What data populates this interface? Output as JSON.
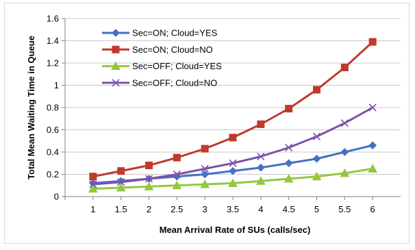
{
  "chart_data": {
    "type": "line",
    "xlabel": "Mean Arrival Rate of SUs (calls/sec)",
    "ylabel": "Total Mean Waiting Time in Queue",
    "x": [
      1,
      1.5,
      2,
      2.5,
      3,
      3.5,
      4,
      4.5,
      5,
      5.5,
      6
    ],
    "x_tick_labels": [
      "1",
      "1.5",
      "2",
      "2.5",
      "3",
      "3.5",
      "4",
      "4.5",
      "5",
      "5.5",
      "6"
    ],
    "ylim": [
      0,
      1.6
    ],
    "y_ticks": [
      0,
      0.2,
      0.4,
      0.6,
      0.8,
      1,
      1.2,
      1.4,
      1.6
    ],
    "y_tick_labels": [
      "0",
      "0.2",
      "0.4",
      "0.6",
      "0.8",
      "1",
      "1.2",
      "1.4",
      "1.6"
    ],
    "grid": "horizontal",
    "legend_position": "top-left",
    "series": [
      {
        "name": "Sec=ON; Cloud=YES",
        "color": "#4472c4",
        "marker": "diamond",
        "values": [
          0.12,
          0.14,
          0.16,
          0.18,
          0.2,
          0.23,
          0.26,
          0.3,
          0.34,
          0.4,
          0.46
        ]
      },
      {
        "name": "Sec=ON; Cloud=NO",
        "color": "#c0392b",
        "marker": "square",
        "values": [
          0.18,
          0.23,
          0.28,
          0.35,
          0.43,
          0.53,
          0.65,
          0.79,
          0.96,
          1.16,
          1.39
        ]
      },
      {
        "name": "Sec=OFF; Cloud=YES",
        "color": "#92c83e",
        "marker": "triangle",
        "values": [
          0.07,
          0.08,
          0.09,
          0.1,
          0.11,
          0.12,
          0.14,
          0.16,
          0.18,
          0.21,
          0.25
        ]
      },
      {
        "name": "Sec=OFF; Cloud=NO",
        "color": "#7b52a8",
        "marker": "x",
        "values": [
          0.11,
          0.13,
          0.16,
          0.2,
          0.25,
          0.3,
          0.36,
          0.44,
          0.54,
          0.66,
          0.8
        ]
      }
    ]
  }
}
